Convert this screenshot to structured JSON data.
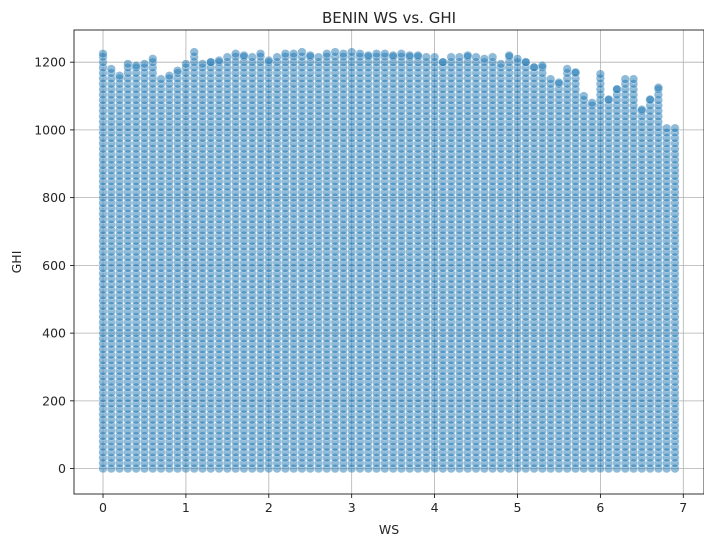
{
  "chart_data": {
    "type": "scatter",
    "title": "BENIN WS vs. GHI",
    "xlabel": "WS",
    "ylabel": "GHI",
    "xlim": [
      -0.35,
      7.25
    ],
    "ylim": [
      -75,
      1295
    ],
    "xticks": [
      0,
      1,
      2,
      3,
      4,
      5,
      6,
      7
    ],
    "yticks": [
      0,
      200,
      400,
      600,
      800,
      1000,
      1200
    ],
    "grid": true,
    "legend": "none",
    "point_color": "#1f77b4",
    "point_alpha": 0.5,
    "x_values": [
      0.0,
      0.1,
      0.2,
      0.3,
      0.4,
      0.5,
      0.6,
      0.7,
      0.8,
      0.9,
      1.0,
      1.1,
      1.2,
      1.3,
      1.4,
      1.5,
      1.6,
      1.7,
      1.8,
      1.9,
      2.0,
      2.1,
      2.2,
      2.3,
      2.4,
      2.5,
      2.6,
      2.7,
      2.8,
      2.9,
      3.0,
      3.1,
      3.2,
      3.3,
      3.4,
      3.5,
      3.6,
      3.7,
      3.8,
      3.9,
      4.0,
      4.1,
      4.2,
      4.3,
      4.4,
      4.5,
      4.6,
      4.7,
      4.8,
      4.9,
      5.0,
      5.1,
      5.2,
      5.3,
      5.4,
      5.5,
      5.6,
      5.7,
      5.8,
      5.9,
      6.0,
      6.1,
      6.2,
      6.3,
      6.4,
      6.5,
      6.6,
      6.7,
      6.8,
      6.9
    ],
    "y_min": 0,
    "y_max_by_x": [
      1225,
      1180,
      1160,
      1195,
      1190,
      1195,
      1210,
      1150,
      1160,
      1175,
      1195,
      1230,
      1195,
      1200,
      1205,
      1215,
      1225,
      1220,
      1215,
      1225,
      1205,
      1215,
      1225,
      1225,
      1230,
      1220,
      1215,
      1225,
      1230,
      1225,
      1230,
      1225,
      1220,
      1225,
      1225,
      1220,
      1225,
      1220,
      1220,
      1215,
      1215,
      1200,
      1215,
      1215,
      1220,
      1215,
      1210,
      1215,
      1195,
      1220,
      1210,
      1200,
      1185,
      1190,
      1150,
      1140,
      1180,
      1170,
      1100,
      1080,
      1165,
      1090,
      1120,
      1150,
      1150,
      1060,
      1090,
      1125,
      1005,
      1005
    ]
  }
}
